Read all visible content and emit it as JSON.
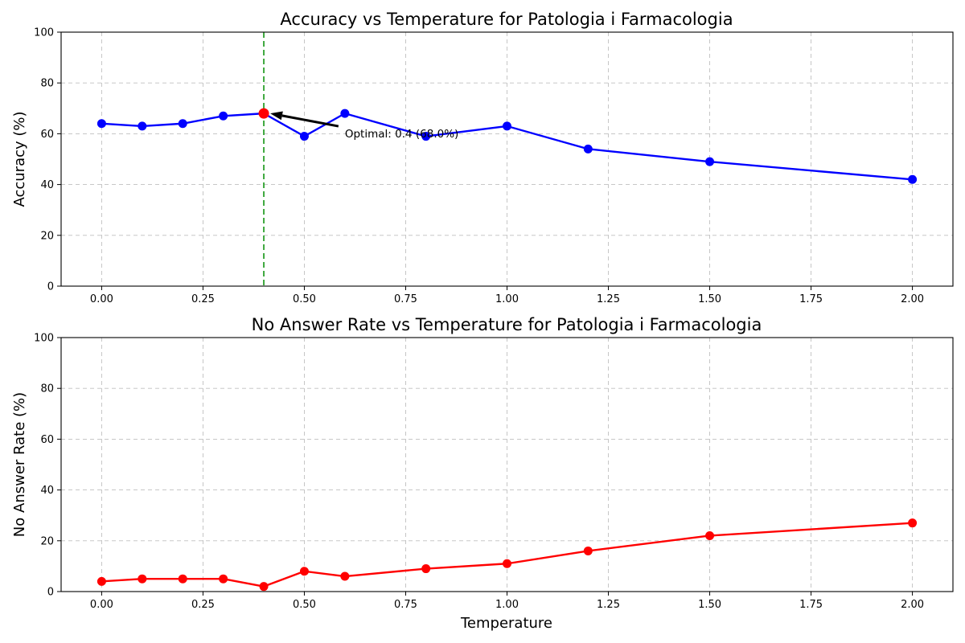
{
  "chart_data": [
    {
      "type": "line",
      "title": "Accuracy vs Temperature for Patologia i Farmacologia",
      "xlabel": "",
      "ylabel": "Accuracy (%)",
      "xlim": [
        -0.1,
        2.1
      ],
      "ylim": [
        0,
        100
      ],
      "xticks": [
        0.0,
        0.25,
        0.5,
        0.75,
        1.0,
        1.25,
        1.5,
        1.75,
        2.0
      ],
      "xtick_labels": [
        "0.00",
        "0.25",
        "0.50",
        "0.75",
        "1.00",
        "1.25",
        "1.50",
        "1.75",
        "2.00"
      ],
      "yticks": [
        0,
        20,
        40,
        60,
        80,
        100
      ],
      "ytick_labels": [
        "0",
        "20",
        "40",
        "60",
        "80",
        "100"
      ],
      "grid": true,
      "series": [
        {
          "color": "#0000ff",
          "x": [
            0.0,
            0.1,
            0.2,
            0.3,
            0.4,
            0.5,
            0.6,
            0.8,
            1.0,
            1.2,
            1.5,
            2.0
          ],
          "y": [
            64,
            63,
            64,
            67,
            68,
            59,
            68,
            59,
            63,
            54,
            49,
            42
          ]
        }
      ],
      "highlight_point": {
        "x": 0.4,
        "y": 68,
        "color": "#ff0000"
      },
      "vline": {
        "x": 0.4,
        "color": "#2ca02c"
      },
      "annotation": {
        "text": "Optimal: 0.4 (68.0%)",
        "point_x": 0.4,
        "point_y": 68,
        "text_x": 0.6,
        "text_y": 62
      }
    },
    {
      "type": "line",
      "title": "No Answer Rate vs Temperature for Patologia i Farmacologia",
      "xlabel": "Temperature",
      "ylabel": "No Answer Rate (%)",
      "xlim": [
        -0.1,
        2.1
      ],
      "ylim": [
        0,
        100
      ],
      "xticks": [
        0.0,
        0.25,
        0.5,
        0.75,
        1.0,
        1.25,
        1.5,
        1.75,
        2.0
      ],
      "xtick_labels": [
        "0.00",
        "0.25",
        "0.50",
        "0.75",
        "1.00",
        "1.25",
        "1.50",
        "1.75",
        "2.00"
      ],
      "yticks": [
        0,
        20,
        40,
        60,
        80,
        100
      ],
      "ytick_labels": [
        "0",
        "20",
        "40",
        "60",
        "80",
        "100"
      ],
      "grid": true,
      "series": [
        {
          "color": "#ff0000",
          "x": [
            0.0,
            0.1,
            0.2,
            0.3,
            0.4,
            0.5,
            0.6,
            0.8,
            1.0,
            1.2,
            1.5,
            2.0
          ],
          "y": [
            4,
            5,
            5,
            5,
            2,
            8,
            6,
            9,
            11,
            16,
            22,
            27
          ]
        }
      ]
    }
  ]
}
